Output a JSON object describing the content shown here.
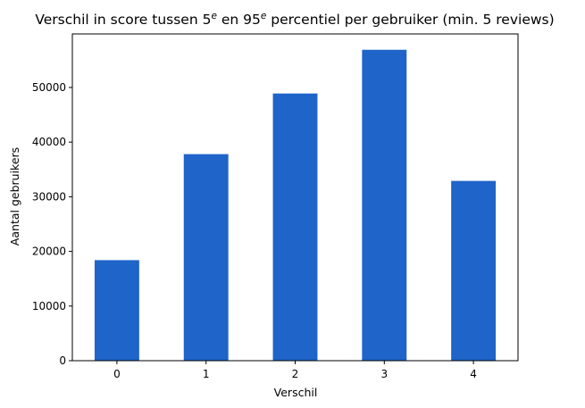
{
  "chart_data": {
    "type": "bar",
    "title": {
      "main": "Verschil in score tussen 5",
      "sup1": "e",
      "mid": " en 95",
      "sup2": "e",
      "end": " percentiel per gebruiker (min. 5 reviews)"
    },
    "xlabel": "Verschil",
    "ylabel": "Aantal gebruikers",
    "categories": [
      "0",
      "1",
      "2",
      "3",
      "4"
    ],
    "values": [
      18400,
      37800,
      48900,
      56900,
      32900
    ],
    "ylim": [
      0,
      59800
    ],
    "yticks": [
      0,
      10000,
      20000,
      30000,
      40000,
      50000
    ],
    "ytick_labels": [
      "0",
      "10000",
      "20000",
      "30000",
      "40000",
      "50000"
    ],
    "bar_color": "#1f64c8",
    "grid": false,
    "legend": "none"
  }
}
